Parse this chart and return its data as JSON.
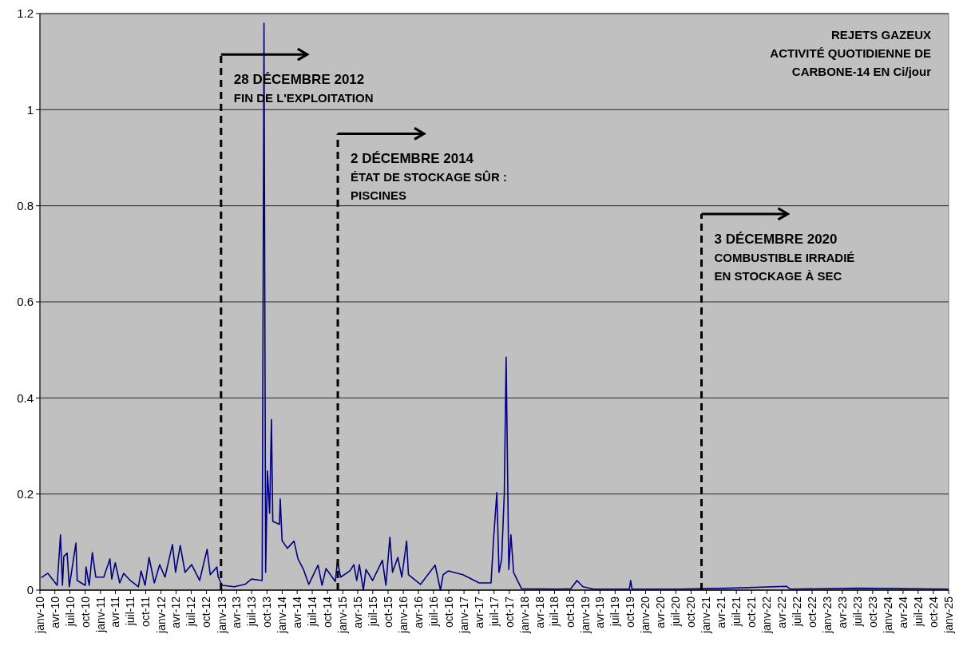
{
  "chart_data": {
    "type": "line",
    "title": "REJETS GAZEUX\nACTIVITÉ QUOTIDIENNE DE\nCARBONE-14 EN Ci/jour",
    "x": [
      "2010-01-09",
      "2010-02-18",
      "2010-04-15",
      "2010-05-05",
      "2010-05-17",
      "2010-05-25",
      "2010-06-14",
      "2010-06-27",
      "2010-08-06",
      "2010-08-14",
      "2010-10-01",
      "2010-10-06",
      "2010-10-25",
      "2010-11-13",
      "2010-12-04",
      "2011-01-21",
      "2011-02-27",
      "2011-03-10",
      "2011-03-31",
      "2011-04-27",
      "2011-05-21",
      "2011-06-30",
      "2011-08-18",
      "2011-09-03",
      "2011-09-27",
      "2011-10-21",
      "2011-11-22",
      "2011-12-24",
      "2012-01-25",
      "2012-03-10",
      "2012-03-29",
      "2012-04-26",
      "2012-05-25",
      "2012-07-04",
      "2012-08-21",
      "2012-10-05",
      "2012-10-24",
      "2012-12-03",
      "2012-12-11",
      "2013-01-04",
      "2013-03-17",
      "2013-05-21",
      "2013-06-30",
      "2013-09-02",
      "2013-09-13",
      "2013-09-23",
      "2013-10-04",
      "2013-10-17",
      "2013-10-28",
      "2013-11-05",
      "2013-12-15",
      "2013-12-20",
      "2013-12-31",
      "2014-02-01",
      "2014-03-13",
      "2014-04-06",
      "2014-05-09",
      "2014-06-10",
      "2014-08-05",
      "2014-08-29",
      "2014-09-22",
      "2014-11-17",
      "2014-11-30",
      "2014-12-19",
      "2015-02-13",
      "2015-03-09",
      "2015-03-26",
      "2015-04-11",
      "2015-05-05",
      "2015-05-21",
      "2015-06-30",
      "2015-08-28",
      "2015-09-18",
      "2015-10-12",
      "2015-10-28",
      "2015-11-29",
      "2015-12-23",
      "2016-01-21",
      "2016-02-01",
      "2016-04-14",
      "2016-07-11",
      "2016-08-12",
      "2016-08-28",
      "2016-09-29",
      "2016-12-26",
      "2017-04-02",
      "2017-06-13",
      "2017-06-29",
      "2017-07-18",
      "2017-07-31",
      "2017-08-16",
      "2017-09-01",
      "2017-09-12",
      "2017-09-28",
      "2017-10-11",
      "2017-10-27",
      "2017-11-15",
      "2017-12-14",
      "2018-07-27",
      "2018-10-07",
      "2018-11-13",
      "2018-12-19",
      "2019-02-21",
      "2019-09-25",
      "2019-10-03",
      "2019-10-11",
      "2020-07-18",
      "2021-05-17",
      "2022-04-29",
      "2022-05-23",
      "2023-07-06",
      "2025-01-01"
    ],
    "series": [
      {
        "color": "#000080",
        "values": [
          0.026,
          0.035,
          0.01,
          0.115,
          0.01,
          0.07,
          0.077,
          0.007,
          0.098,
          0.02,
          0.01,
          0.048,
          0.01,
          0.078,
          0.027,
          0.027,
          0.065,
          0.023,
          0.057,
          0.015,
          0.035,
          0.02,
          0.007,
          0.04,
          0.01,
          0.068,
          0.015,
          0.053,
          0.027,
          0.095,
          0.037,
          0.093,
          0.037,
          0.053,
          0.02,
          0.085,
          0.032,
          0.048,
          0.027,
          0.01,
          0.007,
          0.012,
          0.023,
          0.02,
          1.18,
          0.037,
          0.248,
          0.16,
          0.355,
          0.143,
          0.137,
          0.19,
          0.103,
          0.087,
          0.102,
          0.065,
          0.043,
          0.012,
          0.052,
          0.01,
          0.045,
          0.018,
          0.06,
          0.027,
          0.04,
          0.053,
          0.02,
          0.053,
          0.0,
          0.043,
          0.02,
          0.062,
          0.01,
          0.11,
          0.037,
          0.068,
          0.027,
          0.102,
          0.032,
          0.012,
          0.052,
          0.0,
          0.032,
          0.04,
          0.032,
          0.015,
          0.015,
          0.11,
          0.203,
          0.037,
          0.065,
          0.202,
          0.485,
          0.043,
          0.115,
          0.037,
          0.023,
          0.003,
          0.002,
          0.003,
          0.02,
          0.007,
          0.002,
          0.002,
          0.02,
          0.002,
          0.002,
          0.004,
          0.008,
          0.002,
          0.004,
          0.002
        ]
      }
    ],
    "xlim": [
      "2010-01-01",
      "2025-01-01"
    ],
    "xticks": [
      {
        "value": "2010-01-01",
        "label": "janv-10"
      },
      {
        "value": "2010-04-01",
        "label": "avr-10"
      },
      {
        "value": "2010-07-01",
        "label": "juil-10"
      },
      {
        "value": "2010-10-01",
        "label": "oct-10"
      },
      {
        "value": "2011-01-01",
        "label": "janv-11"
      },
      {
        "value": "2011-04-01",
        "label": "avr-11"
      },
      {
        "value": "2011-07-01",
        "label": "juil-11"
      },
      {
        "value": "2011-10-01",
        "label": "oct-11"
      },
      {
        "value": "2012-01-01",
        "label": "janv-12"
      },
      {
        "value": "2012-04-01",
        "label": "avr-12"
      },
      {
        "value": "2012-07-01",
        "label": "juil-12"
      },
      {
        "value": "2012-10-01",
        "label": "oct-12"
      },
      {
        "value": "2013-01-01",
        "label": "janv-13"
      },
      {
        "value": "2013-04-01",
        "label": "avr-13"
      },
      {
        "value": "2013-07-01",
        "label": "juil-13"
      },
      {
        "value": "2013-10-01",
        "label": "oct-13"
      },
      {
        "value": "2014-01-01",
        "label": "janv-14"
      },
      {
        "value": "2014-04-01",
        "label": "avr-14"
      },
      {
        "value": "2014-07-01",
        "label": "juil-14"
      },
      {
        "value": "2014-10-01",
        "label": "oct-14"
      },
      {
        "value": "2015-01-01",
        "label": "janv-15"
      },
      {
        "value": "2015-04-01",
        "label": "avr-15"
      },
      {
        "value": "2015-07-01",
        "label": "juil-15"
      },
      {
        "value": "2015-10-01",
        "label": "oct-15"
      },
      {
        "value": "2016-01-01",
        "label": "janv-16"
      },
      {
        "value": "2016-04-01",
        "label": "avr-16"
      },
      {
        "value": "2016-07-01",
        "label": "juil-16"
      },
      {
        "value": "2016-10-01",
        "label": "oct-16"
      },
      {
        "value": "2017-01-01",
        "label": "janv-17"
      },
      {
        "value": "2017-04-01",
        "label": "avr-17"
      },
      {
        "value": "2017-07-01",
        "label": "juil-17"
      },
      {
        "value": "2017-10-01",
        "label": "oct-17"
      },
      {
        "value": "2018-01-01",
        "label": "janv-18"
      },
      {
        "value": "2018-04-01",
        "label": "avr-18"
      },
      {
        "value": "2018-07-01",
        "label": "juil-18"
      },
      {
        "value": "2018-10-01",
        "label": "oct-18"
      },
      {
        "value": "2019-01-01",
        "label": "janv-19"
      },
      {
        "value": "2019-04-01",
        "label": "avr-19"
      },
      {
        "value": "2019-07-01",
        "label": "juil-19"
      },
      {
        "value": "2019-10-01",
        "label": "oct-19"
      },
      {
        "value": "2020-01-01",
        "label": "janv-20"
      },
      {
        "value": "2020-04-01",
        "label": "avr-20"
      },
      {
        "value": "2020-07-01",
        "label": "juil-20"
      },
      {
        "value": "2020-10-01",
        "label": "oct-20"
      },
      {
        "value": "2021-01-01",
        "label": "janv-21"
      },
      {
        "value": "2021-04-01",
        "label": "avr-21"
      },
      {
        "value": "2021-07-01",
        "label": "juil-21"
      },
      {
        "value": "2021-10-01",
        "label": "oct-21"
      },
      {
        "value": "2022-01-01",
        "label": "janv-22"
      },
      {
        "value": "2022-04-01",
        "label": "avr-22"
      },
      {
        "value": "2022-07-01",
        "label": "juil-22"
      },
      {
        "value": "2022-10-01",
        "label": "oct-22"
      },
      {
        "value": "2023-01-01",
        "label": "janv-23"
      },
      {
        "value": "2023-04-01",
        "label": "avr-23"
      },
      {
        "value": "2023-07-01",
        "label": "juil-23"
      },
      {
        "value": "2023-10-01",
        "label": "oct-23"
      },
      {
        "value": "2024-01-01",
        "label": "janv-24"
      },
      {
        "value": "2024-04-01",
        "label": "avr-24"
      },
      {
        "value": "2024-07-01",
        "label": "juil-24"
      },
      {
        "value": "2024-10-01",
        "label": "oct-24"
      },
      {
        "value": "2025-01-01",
        "label": "janv-25"
      }
    ],
    "ylim": [
      0,
      1.2
    ],
    "yticks": [
      0,
      0.2,
      0.4,
      0.6,
      0.8,
      1,
      1.2
    ],
    "grid": "y",
    "marker": "none",
    "line_style": "solid",
    "ref_lines": [
      {
        "axis": "x",
        "value": "2012-12-28",
        "color": "#000000",
        "line_style": "dashed"
      },
      {
        "axis": "x",
        "value": "2014-12-02",
        "color": "#000000",
        "line_style": "dashed"
      },
      {
        "axis": "x",
        "value": "2020-12-03",
        "color": "#000000",
        "line_style": "dashed"
      }
    ],
    "annotations": [
      {
        "text": "28 DÉCEMBRE 2012\nFIN DE L'EXPLOITATION",
        "x": "2012-12-28",
        "y": 1.115
      },
      {
        "text": "2 DÉCEMBRE 2014\nÉTAT DE STOCKAGE SÛR :\nPISCINES",
        "x": "2014-12-02",
        "y": 0.95
      },
      {
        "text": "3 DÉCEMBRE 2020\nCOMBUSTIBLE IRRADIÉ\nEN STOCKAGE À SEC",
        "x": "2020-12-03",
        "y": 0.783
      }
    ]
  }
}
